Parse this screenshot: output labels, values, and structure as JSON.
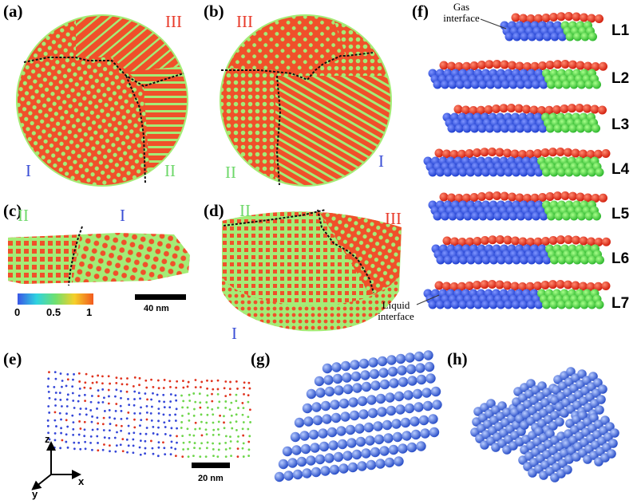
{
  "panels": {
    "a": "(a)",
    "b": "(b)",
    "c": "(c)",
    "d": "(d)",
    "e": "(e)",
    "f": "(f)",
    "g": "(g)",
    "h": "(h)"
  },
  "grain_labels": {
    "a_III": "III",
    "a_I": "I",
    "a_II": "II",
    "b_III": "III",
    "b_II": "II",
    "b_I": "I",
    "c_II": "II",
    "c_I": "I",
    "d_II": "II",
    "d_III": "III",
    "d_I": "I"
  },
  "colorbar": {
    "ticks": [
      "0",
      "0.5",
      "1"
    ],
    "scale_label": "40 nm",
    "colors": [
      "#3a56e6",
      "#2fd3e0",
      "#6fe06f",
      "#f5d02a",
      "#f25a1e"
    ]
  },
  "panel_e": {
    "scale_label": "20 nm",
    "axes": {
      "z": "z",
      "x": "x",
      "y": "y"
    }
  },
  "panel_f": {
    "gas_interface": [
      "Gas",
      "interface"
    ],
    "liquid_interface": [
      "Liquid",
      "interface"
    ],
    "layers": [
      "L1",
      "L2",
      "L3",
      "L4",
      "L5",
      "L6",
      "L7"
    ]
  },
  "colors": {
    "orange": "#f0502a",
    "green": "#9ee86a",
    "grain_I": "#3b4fd6",
    "grain_II": "#6ed86a",
    "grain_III": "#e83a2a",
    "sphere_blue": "#4a72d8"
  }
}
